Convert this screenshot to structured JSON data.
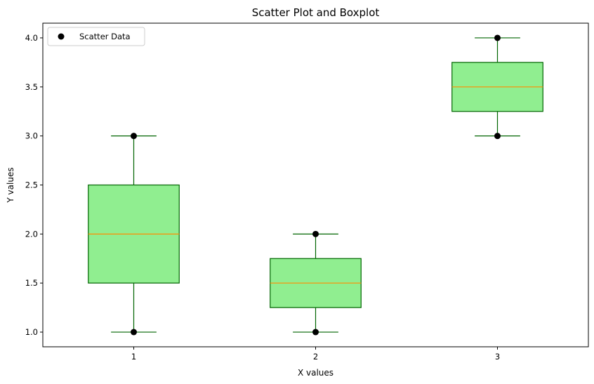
{
  "chart_data": {
    "type": "boxplot",
    "title": "Scatter Plot and Boxplot",
    "xlabel": "X values",
    "ylabel": "Y values",
    "xlim": [
      0.5,
      3.5
    ],
    "ylim": [
      0.85,
      4.15
    ],
    "xticks": [
      "1",
      "2",
      "3"
    ],
    "yticks": [
      "1.0",
      "1.5",
      "2.0",
      "2.5",
      "3.0",
      "3.5",
      "4.0"
    ],
    "grid": false,
    "legend": {
      "position": "top-left",
      "entries": [
        "Scatter Data"
      ]
    },
    "boxes": [
      {
        "x": 1,
        "whisker_low": 1.0,
        "q1": 1.5,
        "median": 2.0,
        "q3": 2.5,
        "whisker_high": 3.0
      },
      {
        "x": 2,
        "whisker_low": 1.0,
        "q1": 1.25,
        "median": 1.5,
        "q3": 1.75,
        "whisker_high": 2.0
      },
      {
        "x": 3,
        "whisker_low": 3.0,
        "q1": 3.25,
        "median": 3.5,
        "q3": 3.75,
        "whisker_high": 4.0
      }
    ],
    "series": [
      {
        "name": "Scatter Data",
        "type": "scatter",
        "points": [
          {
            "x": 1,
            "y": 1
          },
          {
            "x": 1,
            "y": 3
          },
          {
            "x": 2,
            "y": 1
          },
          {
            "x": 2,
            "y": 2
          },
          {
            "x": 3,
            "y": 3
          },
          {
            "x": 3,
            "y": 4
          }
        ]
      }
    ],
    "colors": {
      "box_fill": "#90ee90",
      "box_edge": "#006400",
      "median": "#ff8c00",
      "whisker": "#006400",
      "scatter": "#000000"
    }
  }
}
